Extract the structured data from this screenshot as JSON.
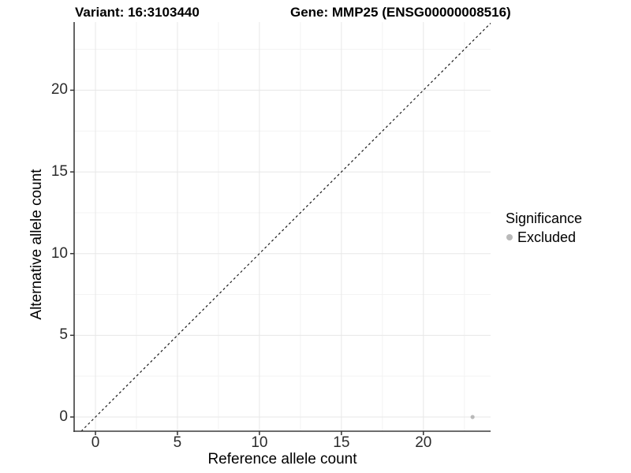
{
  "chart_data": {
    "type": "scatter",
    "title_left": "Variant: 16:3103440",
    "title_right": "Gene: MMP25 (ENSG00000008516)",
    "xlabel": "Reference allele count",
    "ylabel": "Alternative allele count",
    "xlim": [
      -1.3,
      24.1
    ],
    "ylim": [
      -0.87,
      24.17
    ],
    "x_ticks": [
      0,
      5,
      10,
      15,
      20
    ],
    "y_ticks": [
      0,
      5,
      10,
      15,
      20
    ],
    "x_minor_ticks": [
      2.5,
      7.5,
      12.5,
      17.5,
      22.5
    ],
    "y_minor_ticks": [
      2.5,
      7.5,
      12.5,
      17.5,
      22.5
    ],
    "grid": "major+minor",
    "reference_line": {
      "type": "identity",
      "style": "dashed",
      "slope": 1,
      "intercept": 0
    },
    "series": [
      {
        "name": "Excluded",
        "marker": "circle",
        "color": "#b9b9b9",
        "points": [
          {
            "x": 23,
            "y": 0
          }
        ]
      }
    ],
    "legend": {
      "title": "Significance",
      "position": "right",
      "items": [
        {
          "label": "Excluded",
          "color": "#b9b9b9",
          "marker": "circle"
        }
      ]
    }
  },
  "colors": {
    "background": "#ffffff",
    "axis_line": "#3d3d3d",
    "tick": "#333333",
    "grid_major": "#e7e7e7",
    "grid_minor": "#f3f3f3",
    "reference_line": "#1a1a1a",
    "text": "#000000"
  }
}
